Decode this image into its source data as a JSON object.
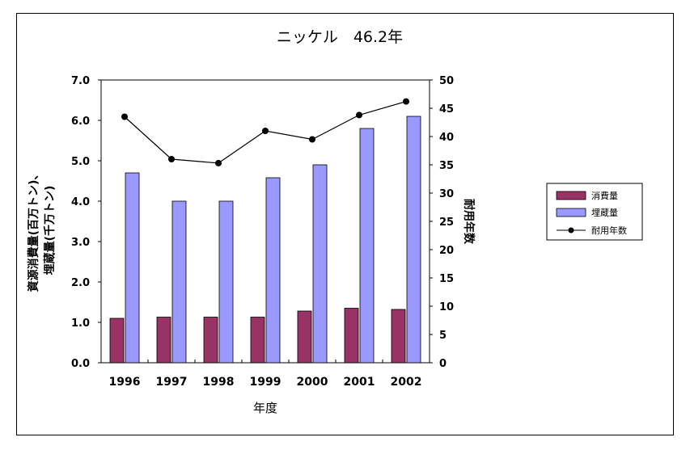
{
  "chart_data": {
    "type": "bar",
    "title": "ニッケル　46.2年",
    "xlabel": "年度",
    "ylabel_lines": [
      "資源消費量(百万トン)、",
      "埋蔵量(千万トン)"
    ],
    "y2label": "耐用年数",
    "categories": [
      "1996",
      "1997",
      "1998",
      "1999",
      "2000",
      "2001",
      "2002"
    ],
    "ylim": [
      0,
      7
    ],
    "y_ticks": [
      "0.0",
      "1.0",
      "2.0",
      "3.0",
      "4.0",
      "5.0",
      "6.0",
      "7.0"
    ],
    "y2lim": [
      0,
      50
    ],
    "y2_ticks": [
      "0",
      "5",
      "10",
      "15",
      "20",
      "25",
      "30",
      "35",
      "40",
      "45",
      "50"
    ],
    "series": [
      {
        "name": "消費量",
        "type": "bar",
        "axis": "left",
        "color": "#993366",
        "values": [
          1.1,
          1.13,
          1.13,
          1.13,
          1.28,
          1.35,
          1.32
        ]
      },
      {
        "name": "埋蔵量",
        "type": "bar",
        "axis": "left",
        "color": "#9999ff",
        "values": [
          4.7,
          4.0,
          4.0,
          4.58,
          4.9,
          5.8,
          6.1
        ]
      },
      {
        "name": "耐用年数",
        "type": "line",
        "axis": "right",
        "color": "#000000",
        "values": [
          43.5,
          36.0,
          35.3,
          41.0,
          39.5,
          43.8,
          46.2
        ]
      }
    ],
    "grid": false,
    "legend_position": "right"
  }
}
